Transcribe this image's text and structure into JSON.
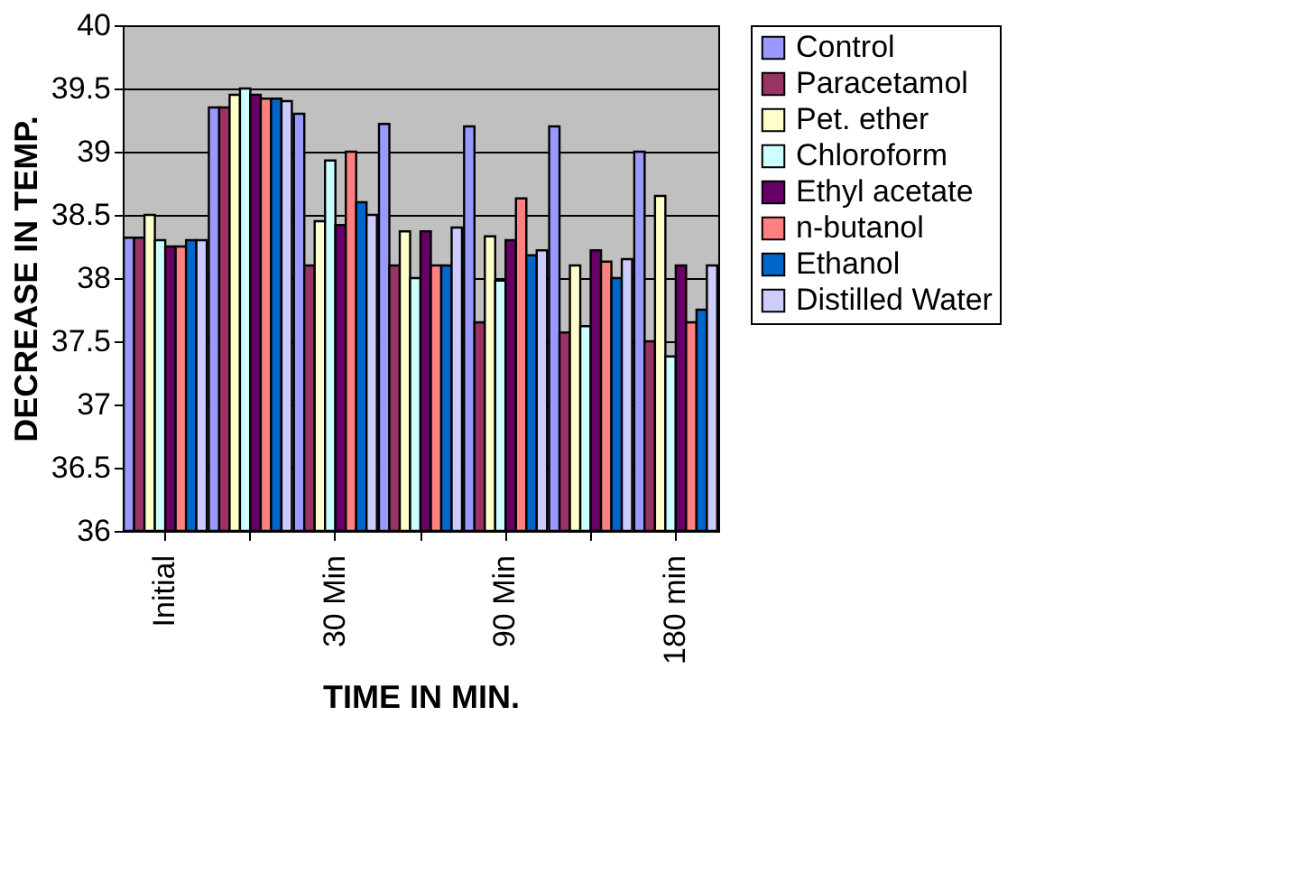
{
  "chart_data": {
    "type": "bar",
    "xlabel": "TIME IN MIN.",
    "ylabel": "DECREASE IN TEMP.",
    "categories": [
      "Initial",
      null,
      "30 Min",
      null,
      "90 Min",
      null,
      "180 min"
    ],
    "series": [
      {
        "name": "Control",
        "color": "#9999ff",
        "values": [
          38.32,
          39.35,
          39.3,
          39.22,
          39.2,
          39.2,
          39.0
        ]
      },
      {
        "name": "Paracetamol",
        "color": "#993366",
        "values": [
          38.32,
          39.35,
          38.1,
          38.1,
          37.65,
          37.57,
          37.5
        ]
      },
      {
        "name": "Pet. ether",
        "color": "#ffffcc",
        "values": [
          38.5,
          39.45,
          38.45,
          38.37,
          38.33,
          38.1,
          38.65
        ]
      },
      {
        "name": "Chloroform",
        "color": "#ccffff",
        "values": [
          38.3,
          39.5,
          38.93,
          38.0,
          37.98,
          37.62,
          37.38
        ]
      },
      {
        "name": "Ethyl acetate",
        "color": "#660066",
        "values": [
          38.25,
          39.45,
          38.42,
          38.37,
          38.3,
          38.22,
          38.1
        ]
      },
      {
        "name": "n-butanol",
        "color": "#ff8080",
        "values": [
          38.25,
          39.42,
          39.0,
          38.1,
          38.63,
          38.13,
          37.65
        ]
      },
      {
        "name": "Ethanol",
        "color": "#0066cc",
        "values": [
          38.3,
          39.42,
          38.6,
          38.1,
          38.18,
          38.0,
          37.75
        ]
      },
      {
        "name": "Distilled Water",
        "color": "#ccccff",
        "values": [
          38.3,
          39.4,
          38.5,
          38.4,
          38.22,
          38.15,
          38.1
        ]
      }
    ],
    "ylim": [
      36,
      40
    ],
    "yticks": [
      36,
      36.5,
      37,
      37.5,
      38,
      38.5,
      39,
      39.5,
      40
    ],
    "grid": "y",
    "legend": "right"
  }
}
